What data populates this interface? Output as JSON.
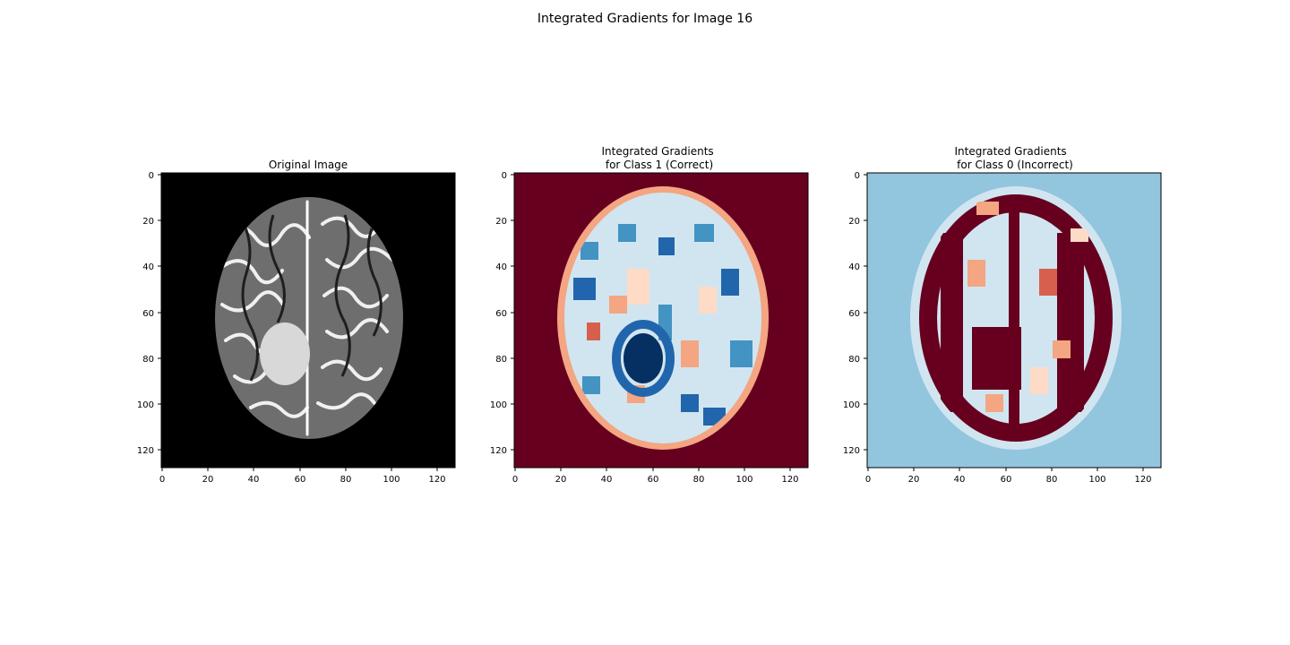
{
  "figure": {
    "suptitle": "Integrated Gradients for Image 16"
  },
  "chart_data": [
    {
      "type": "heatmap",
      "title_lines": [
        "Original Image"
      ],
      "colormap": "gray",
      "xlim": [
        0,
        128
      ],
      "ylim": [
        128,
        0
      ],
      "xticks": [
        "0",
        "20",
        "40",
        "60",
        "80",
        "100",
        "120"
      ],
      "yticks": [
        "0",
        "20",
        "40",
        "60",
        "80",
        "100",
        "120"
      ],
      "colors": {
        "background": "#000000",
        "light": "#f2f2f2",
        "dark": "#1a1a1a"
      }
    },
    {
      "type": "heatmap",
      "title_lines": [
        "Integrated Gradients",
        "for Class 1 (Correct)"
      ],
      "colormap": "RdBu",
      "xlim": [
        0,
        128
      ],
      "ylim": [
        128,
        0
      ],
      "xticks": [
        "0",
        "20",
        "40",
        "60",
        "80",
        "100",
        "120"
      ],
      "yticks": [
        "0",
        "20",
        "40",
        "60",
        "80",
        "100",
        "120"
      ],
      "colors": {
        "background": "#67001f",
        "edge": "#f4a582",
        "light": "#d1e5f0",
        "mid": "#4393c3",
        "deep": "#053061",
        "warm": "#f4a582"
      }
    },
    {
      "type": "heatmap",
      "title_lines": [
        "Integrated Gradients",
        "for Class 0 (Incorrect)"
      ],
      "colormap": "RdBu",
      "xlim": [
        0,
        128
      ],
      "ylim": [
        128,
        0
      ],
      "xticks": [
        "0",
        "20",
        "40",
        "60",
        "80",
        "100",
        "120"
      ],
      "yticks": [
        "0",
        "20",
        "40",
        "60",
        "80",
        "100",
        "120"
      ],
      "colors": {
        "background": "#92c5de",
        "inner": "#d1e5f0",
        "hot": "#67001f",
        "warm": "#f4a582"
      }
    }
  ]
}
